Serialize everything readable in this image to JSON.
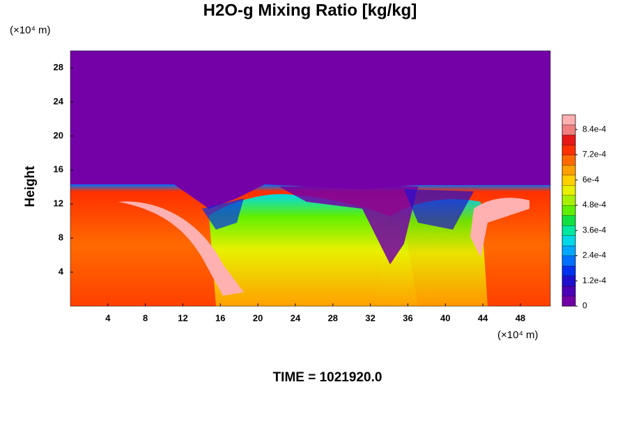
{
  "chart_data": {
    "type": "contour",
    "title": "H2O-g Mixing Ratio [kg/kg]",
    "y_label": "Height",
    "y_unit": "(×10⁴ m)",
    "x_unit": "(×10⁴ m)",
    "time_label": "TIME = 1021920.0",
    "xlim": [
      0,
      51.2
    ],
    "xticks": [
      4,
      8,
      12,
      16,
      20,
      24,
      28,
      32,
      36,
      40,
      44,
      48
    ],
    "ylim": [
      0,
      30
    ],
    "yticks": [
      4,
      8,
      12,
      16,
      20,
      24,
      28
    ],
    "clim": [
      0,
      0.00091
    ],
    "cticks": [
      0,
      {
        "value": 0.00012,
        "label": "1.2e-4"
      },
      {
        "value": 0.00024,
        "label": "2.4e-4"
      },
      {
        "value": 0.00036,
        "label": "3.6e-4"
      },
      {
        "value": 0.00048,
        "label": "4.8e-4"
      },
      {
        "value": 0.0006,
        "label": "6e-4"
      },
      {
        "value": 0.00072,
        "label": "7.2e-4"
      },
      {
        "value": 0.00084,
        "label": "8.4e-4"
      }
    ],
    "colors": [
      "#7400a8",
      "#4b00b8",
      "#1f10d0",
      "#0030f0",
      "#0070ff",
      "#00a8ff",
      "#00d8e8",
      "#00e8a0",
      "#10e040",
      "#60f000",
      "#a8f000",
      "#e8f000",
      "#ffd000",
      "#ffa000",
      "#ff6a00",
      "#ff3000",
      "#e81818",
      "#f08080",
      "#ffb0b0"
    ]
  }
}
